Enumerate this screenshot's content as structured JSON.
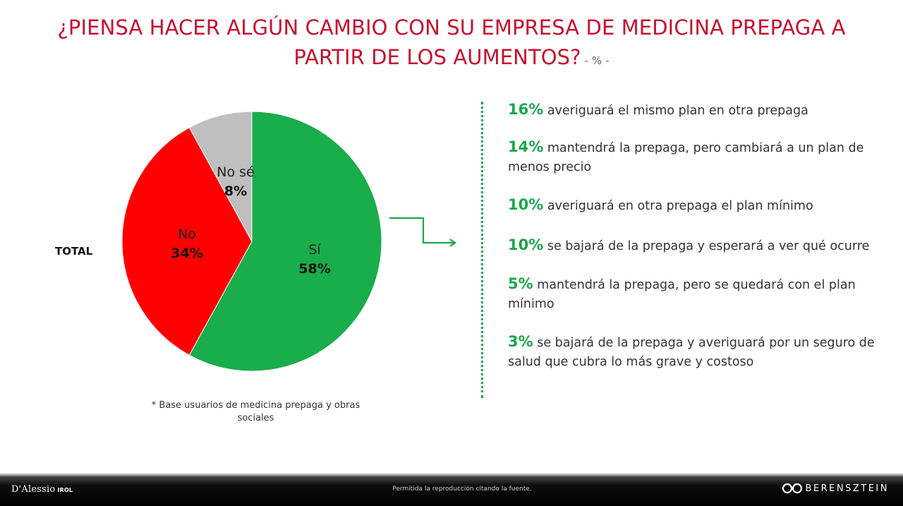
{
  "title": {
    "line1": "¿PIENSA HACER ALGÚN CAMBIO CON SU EMPRESA DE MEDICINA PREPAGA A",
    "line2": "PARTIR DE LOS AUMENTOS?",
    "unit": " - % -"
  },
  "chart_data": {
    "type": "pie",
    "title": "¿PIENSA HACER ALGÚN CAMBIO CON SU EMPRESA DE MEDICINA PREPAGA A PARTIR DE LOS AUMENTOS?",
    "category_label": "TOTAL",
    "slices": [
      {
        "label": "Sí",
        "value": 58,
        "display": "58%",
        "color": "#19ad4b"
      },
      {
        "label": "No",
        "value": 34,
        "display": "34%",
        "color": "#fe0000"
      },
      {
        "label": "No sé",
        "value": 8,
        "display": "8%",
        "color": "#bfbfbf"
      }
    ]
  },
  "total_label": "TOTAL",
  "footnote": "* Base usuarios de medicina prepaga y obras sociales",
  "breakdown": [
    {
      "pct": "16%",
      "text": "averiguará el mismo plan en otra prepaga"
    },
    {
      "pct": "14%",
      "text": "mantendrá la prepaga, pero cambiará a un plan de menos precio"
    },
    {
      "pct": "10%",
      "text": "averiguará en otra prepaga el plan mínimo"
    },
    {
      "pct": "10%",
      "text": "se bajará de la prepaga y esperará a ver qué ocurre"
    },
    {
      "pct": "5%",
      "text": "mantendrá la prepaga, pero se quedará con el plan mínimo"
    },
    {
      "pct": "3%",
      "text": "se bajará de la prepaga y averiguará por un seguro de salud que cubra lo más grave y costoso"
    }
  ],
  "accent_color": "#1aa84a",
  "title_color": "#c8102e",
  "footer": {
    "left_logo": "D'Alessio",
    "left_logo_sub": "IROL",
    "note": "Permitida la reproducción citando la fuente.",
    "right_logo": "BERENSZTEIN"
  }
}
